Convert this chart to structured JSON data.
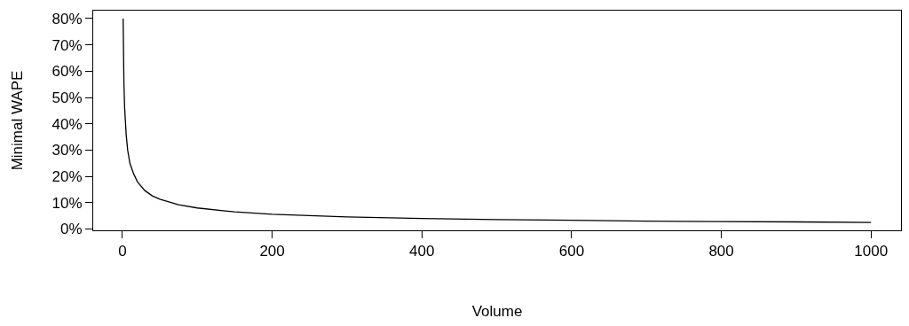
{
  "chart_data": {
    "type": "line",
    "xlabel": "Volume",
    "ylabel": "Minimal WAPE",
    "x": [
      1,
      2,
      3,
      5,
      7,
      10,
      15,
      20,
      30,
      40,
      50,
      75,
      100,
      150,
      200,
      300,
      400,
      500,
      600,
      700,
      800,
      900,
      1000
    ],
    "series": [
      {
        "color": "#000000",
        "values": [
          80,
          56,
          46,
          36,
          30,
          25,
          21,
          18,
          14.6,
          12.6,
          11.3,
          9.2,
          8,
          6.5,
          5.6,
          4.6,
          4,
          3.6,
          3.3,
          3,
          2.8,
          2.7,
          2.5
        ]
      }
    ],
    "xlim": [
      -39,
      1040
    ],
    "xticks": [
      0,
      200,
      400,
      600,
      800,
      1000
    ],
    "ylim": [
      -0.5,
      83
    ],
    "yticks": [
      {
        "value": 0,
        "label": "0%"
      },
      {
        "value": 10,
        "label": "10%"
      },
      {
        "value": 20,
        "label": "20%"
      },
      {
        "value": 30,
        "label": "30%"
      },
      {
        "value": 40,
        "label": "40%"
      },
      {
        "value": 50,
        "label": "50%"
      },
      {
        "value": 60,
        "label": "60%"
      },
      {
        "value": 70,
        "label": "70%"
      },
      {
        "value": 80,
        "label": "80%"
      }
    ],
    "marker": "none",
    "line_style": "solid"
  }
}
